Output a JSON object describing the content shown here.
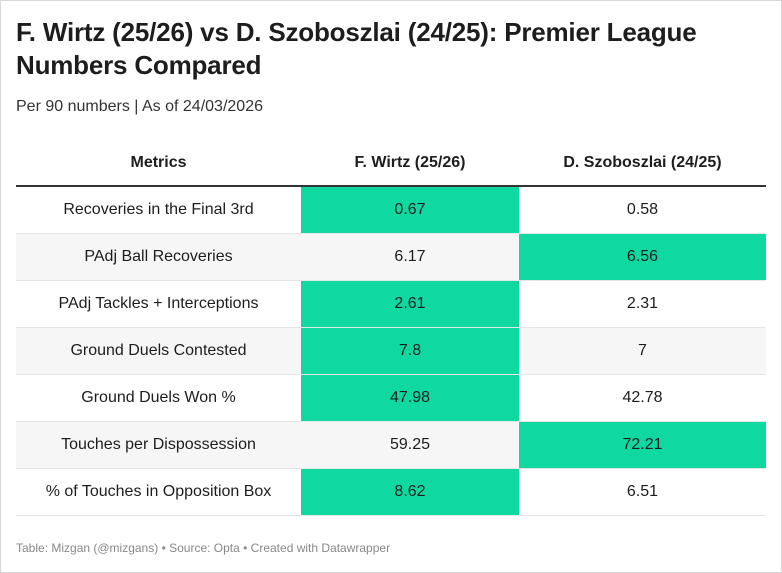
{
  "title": "F. Wirtz (25/26) vs D. Szoboszlai (24/25): Premier League Numbers Compared",
  "subtitle": "Per 90 numbers | As of 24/03/2026",
  "footer": "Table: Mizgan (@mizgans) • Source: Opta • Created with Datawrapper",
  "highlight_color": "#0fd9a0",
  "alt_row_color": "#f6f6f6",
  "chart_data": {
    "type": "table",
    "columns": [
      "Metrics",
      "F. Wirtz (25/26)",
      "D. Szoboszlai (24/25)"
    ],
    "rows": [
      {
        "metric": "Recoveries in the Final 3rd",
        "wirtz": "0.67",
        "szoboszlai": "0.58",
        "highlight": "wirtz"
      },
      {
        "metric": "PAdj Ball Recoveries",
        "wirtz": "6.17",
        "szoboszlai": "6.56",
        "highlight": "szoboszlai"
      },
      {
        "metric": "PAdj Tackles + Interceptions",
        "wirtz": "2.61",
        "szoboszlai": "2.31",
        "highlight": "wirtz"
      },
      {
        "metric": "Ground Duels Contested",
        "wirtz": "7.8",
        "szoboszlai": "7",
        "highlight": "wirtz"
      },
      {
        "metric": "Ground Duels Won %",
        "wirtz": "47.98",
        "szoboszlai": "42.78",
        "highlight": "wirtz"
      },
      {
        "metric": "Touches per Dispossession",
        "wirtz": "59.25",
        "szoboszlai": "72.21",
        "highlight": "szoboszlai"
      },
      {
        "metric": "% of Touches in Opposition Box",
        "wirtz": "8.62",
        "szoboszlai": "6.51",
        "highlight": "wirtz"
      }
    ]
  }
}
